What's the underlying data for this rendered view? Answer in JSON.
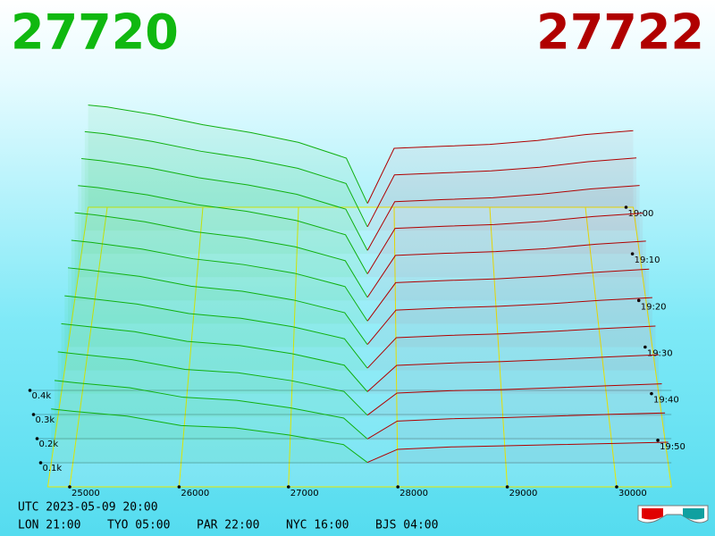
{
  "chart_data": {
    "type": "depth3d",
    "best_bid": 27720,
    "best_ask": 27722,
    "bid_color": "#10b010",
    "ask_color": "#b00000",
    "xlim": [
      24800,
      30500
    ],
    "xticks": [
      25000,
      26000,
      27000,
      28000,
      29000,
      30000
    ],
    "zticks": [
      {
        "value": 100,
        "label": "0.1k"
      },
      {
        "value": 200,
        "label": "0.2k"
      },
      {
        "value": 300,
        "label": "0.3k"
      },
      {
        "value": 400,
        "label": "0.4k"
      }
    ],
    "times": [
      "19:00",
      null,
      "19:10",
      null,
      "19:20",
      null,
      "19:30",
      null,
      "19:40",
      null,
      "19:50",
      null
    ],
    "bid_prices": [
      24800,
      25000,
      25500,
      26000,
      26500,
      27000,
      27500,
      27720
    ],
    "ask_prices": [
      27722,
      28000,
      28500,
      29000,
      29500,
      30000,
      30500
    ],
    "bids": [
      [
        520,
        510,
        470,
        420,
        380,
        330,
        250,
        20
      ],
      [
        494,
        484,
        445,
        396,
        359,
        311,
        235,
        19
      ],
      [
        467,
        457,
        421,
        373,
        338,
        292,
        219,
        17
      ],
      [
        441,
        431,
        396,
        349,
        317,
        273,
        204,
        16
      ],
      [
        415,
        405,
        372,
        325,
        296,
        254,
        188,
        15
      ],
      [
        388,
        378,
        347,
        302,
        275,
        235,
        173,
        13
      ],
      [
        362,
        352,
        323,
        278,
        255,
        215,
        157,
        12
      ],
      [
        335,
        325,
        298,
        255,
        234,
        196,
        142,
        10
      ],
      [
        309,
        299,
        274,
        231,
        213,
        177,
        126,
        9
      ],
      [
        283,
        273,
        249,
        207,
        192,
        158,
        111,
        8
      ],
      [
        256,
        246,
        225,
        184,
        171,
        139,
        95,
        6
      ],
      [
        230,
        220,
        200,
        160,
        150,
        120,
        80,
        5
      ]
    ],
    "asks": [
      [
        20,
        300,
        310,
        320,
        340,
        370,
        390
      ],
      [
        19,
        278,
        288,
        298,
        316,
        344,
        363
      ],
      [
        17,
        256,
        266,
        275,
        293,
        318,
        335
      ],
      [
        16,
        235,
        245,
        253,
        269,
        292,
        308
      ],
      [
        15,
        213,
        223,
        231,
        245,
        266,
        281
      ],
      [
        13,
        191,
        201,
        209,
        222,
        240,
        254
      ],
      [
        12,
        169,
        179,
        186,
        198,
        214,
        226
      ],
      [
        10,
        147,
        157,
        164,
        175,
        188,
        199
      ],
      [
        9,
        125,
        135,
        142,
        151,
        162,
        172
      ],
      [
        8,
        104,
        114,
        119,
        127,
        136,
        144
      ],
      [
        6,
        82,
        92,
        97,
        104,
        111,
        117
      ],
      [
        5,
        60,
        70,
        75,
        80,
        85,
        90
      ]
    ],
    "utc": "UTC 2023-05-09 20:00",
    "clocks": [
      "LON 21:00",
      "TYO 05:00",
      "PAR 22:00",
      "NYC 16:00",
      "BJS 04:00"
    ]
  }
}
